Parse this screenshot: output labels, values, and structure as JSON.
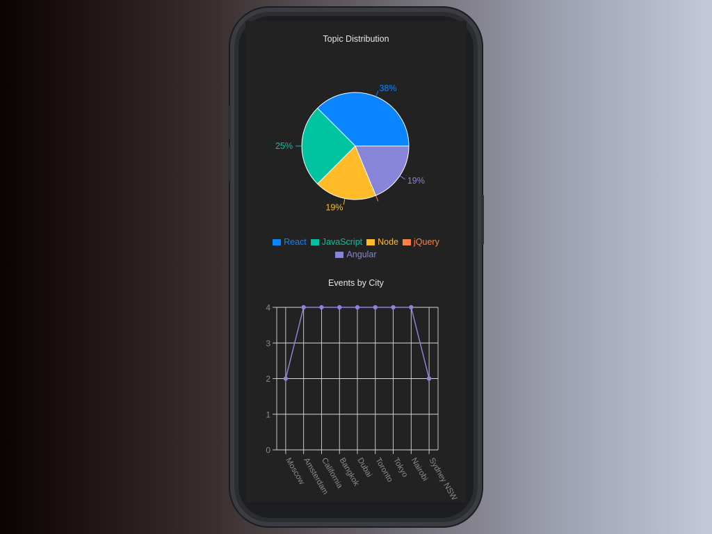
{
  "pie_title": "Topic Distribution",
  "line_title": "Events by City",
  "chart_data": [
    {
      "type": "pie",
      "title": "Topic Distribution",
      "labels": [
        "React",
        "JavaScript",
        "Node",
        "jQuery",
        "Angular"
      ],
      "values": [
        6,
        4,
        3,
        0,
        3
      ],
      "percent_labels": [
        "38%",
        "25%",
        "19%",
        "",
        "19%"
      ],
      "colors": [
        "#0a84ff",
        "#00c49f",
        "#ffbb28",
        "#ff8042",
        "#8884d8"
      ],
      "legend": "bottom"
    },
    {
      "type": "line",
      "title": "Events by City",
      "categories": [
        "Moscow",
        "Amsterdam",
        "California",
        "Bangkok",
        "Dubai",
        "Toronto",
        "Tokyo",
        "Nairobi",
        "Sydney NSW"
      ],
      "values": [
        2,
        4,
        4,
        4,
        4,
        4,
        4,
        4,
        2
      ],
      "y_ticks": [
        "0",
        "1",
        "2",
        "3",
        "4"
      ],
      "ylim": [
        0,
        4
      ],
      "grid": true,
      "color": "#8884d8"
    }
  ]
}
